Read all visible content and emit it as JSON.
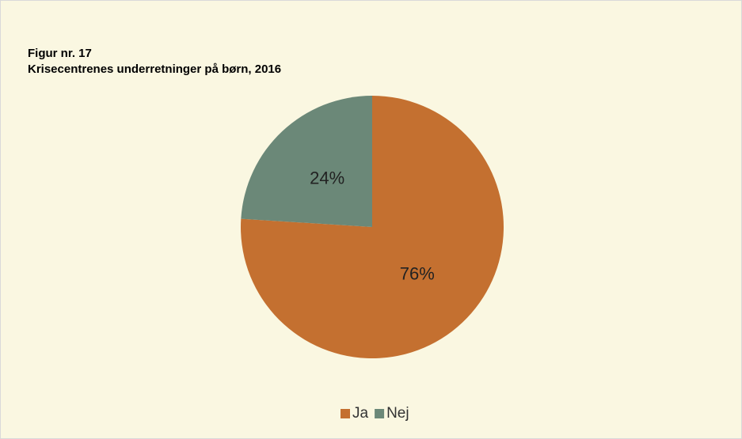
{
  "chart_data": {
    "type": "pie",
    "title": "Figur nr. 17",
    "subtitle": "Krisecentrenes underretninger på børn, 2016",
    "categories": [
      "Ja",
      "Nej"
    ],
    "values": [
      76,
      24
    ],
    "value_labels": [
      "76%",
      "24%"
    ],
    "colors": [
      "#c47030",
      "#6b8878"
    ],
    "legend": "bottom"
  }
}
